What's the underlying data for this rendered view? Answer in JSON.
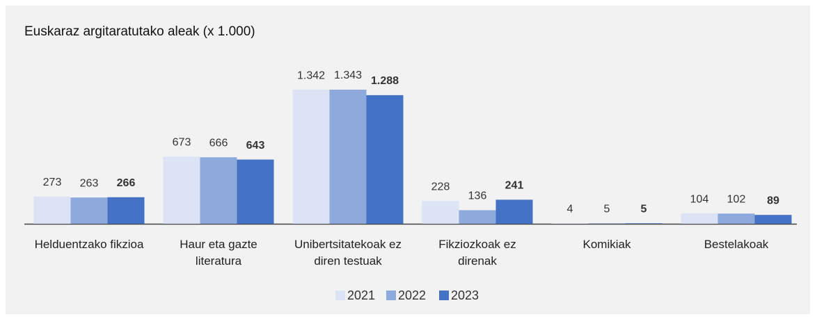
{
  "chart_data": {
    "type": "bar",
    "title": "Euskaraz argitaratutako aleak (x 1.000)",
    "categories": [
      "Helduentzako fikzioa",
      "Haur eta gazte literatura",
      "Unibertsitatekoak ez diren testuak",
      "Fikziozkoak ez direnak",
      "Komikiak",
      "Bestelakoak"
    ],
    "series": [
      {
        "name": "2021",
        "color": "#dbe3f4",
        "values": [
          273,
          673,
          1342,
          228,
          4,
          104
        ],
        "value_labels": [
          "273",
          "673",
          "1.342",
          "228",
          "4",
          "104"
        ]
      },
      {
        "name": "2022",
        "color": "#8eaadc",
        "values": [
          263,
          666,
          1343,
          136,
          5,
          102
        ],
        "value_labels": [
          "263",
          "666",
          "1.343",
          "136",
          "5",
          "102"
        ]
      },
      {
        "name": "2023",
        "color": "#4472c4",
        "values": [
          266,
          643,
          1288,
          241,
          5,
          89
        ],
        "value_labels": [
          "266",
          "643",
          "1.288",
          "241",
          "5",
          "89"
        ]
      }
    ],
    "legend": "bottom"
  }
}
